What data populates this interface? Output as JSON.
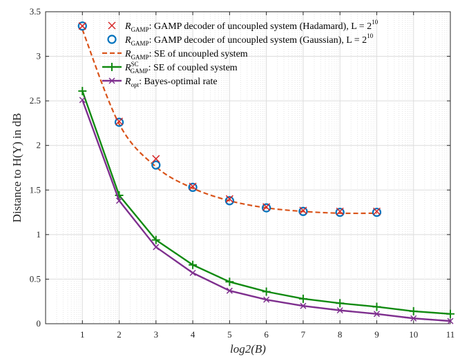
{
  "chart_data": {
    "type": "line",
    "title": "",
    "xlabel": "log2(B)",
    "ylabel": "Distance to H(Y) in dB",
    "xlim": [
      0,
      11
    ],
    "ylim": [
      0,
      3.5
    ],
    "x_ticks": [
      1,
      2,
      3,
      4,
      5,
      6,
      7,
      8,
      9,
      10,
      11
    ],
    "x_tick_labels": [
      "1",
      "2",
      "3",
      "4",
      "5",
      "6",
      "7",
      "8",
      "9",
      "10",
      "11"
    ],
    "y_ticks": [
      0,
      0.5,
      1,
      1.5,
      2,
      2.5,
      3,
      3.5
    ],
    "y_tick_labels": [
      "0",
      "0.5",
      "1",
      "1.5",
      "2",
      "2.5",
      "3",
      "3.5"
    ],
    "grid": true,
    "legend_position": "top-right",
    "series": [
      {
        "name": "GAMP Hadamard",
        "legend_main": "R",
        "legend_sub": "GAMP",
        "legend_sup": "",
        "legend_text": ": GAMP decoder of uncoupled system (Hadamard), L = 2",
        "legend_exp": "10",
        "style": "x-marker",
        "color": "#d62728",
        "x": [
          1,
          2,
          3,
          4,
          5,
          6,
          7,
          8,
          9
        ],
        "values": [
          3.34,
          2.27,
          1.85,
          1.54,
          1.4,
          1.31,
          1.27,
          1.26,
          1.26
        ]
      },
      {
        "name": "GAMP Gaussian",
        "legend_main": "R",
        "legend_sub": "GAMP",
        "legend_sup": "",
        "legend_text": ": GAMP decoder of uncoupled system (Gaussian), L = 2",
        "legend_exp": "10",
        "style": "circle-marker",
        "color": "#0072bd",
        "x": [
          1,
          2,
          3,
          4,
          5,
          6,
          7,
          8,
          9
        ],
        "values": [
          3.34,
          2.26,
          1.78,
          1.53,
          1.38,
          1.3,
          1.26,
          1.25,
          1.25
        ]
      },
      {
        "name": "SE uncoupled",
        "legend_main": "R",
        "legend_sub": "GAMP",
        "legend_sup": "",
        "legend_text": ": SE of uncoupled system",
        "legend_exp": "",
        "style": "dashed",
        "color": "#d95319",
        "x": [
          1,
          2,
          3,
          4,
          5,
          6,
          7,
          8,
          9
        ],
        "values": [
          3.3,
          2.24,
          1.76,
          1.52,
          1.38,
          1.3,
          1.26,
          1.24,
          1.24
        ]
      },
      {
        "name": "SE coupled",
        "legend_main": "R",
        "legend_sub": "GAMP",
        "legend_sup": "SC",
        "legend_text": ": SE of coupled system",
        "legend_exp": "",
        "style": "plus-line",
        "color": "#118a11",
        "x": [
          1,
          2,
          3,
          4,
          5,
          6,
          7,
          8,
          9,
          10,
          11
        ],
        "values": [
          2.61,
          1.44,
          0.94,
          0.66,
          0.47,
          0.36,
          0.28,
          0.23,
          0.19,
          0.14,
          0.11
        ]
      },
      {
        "name": "Bayes-optimal",
        "legend_main": "R",
        "legend_sub": "opt",
        "legend_sup": "",
        "legend_text": ": Bayes-optimal rate",
        "legend_exp": "",
        "style": "x-line",
        "color": "#7e2f8e",
        "x": [
          1,
          2,
          3,
          4,
          5,
          6,
          7,
          8,
          9,
          10,
          11
        ],
        "values": [
          2.51,
          1.38,
          0.86,
          0.57,
          0.37,
          0.27,
          0.2,
          0.15,
          0.11,
          0.06,
          0.03
        ]
      }
    ]
  }
}
